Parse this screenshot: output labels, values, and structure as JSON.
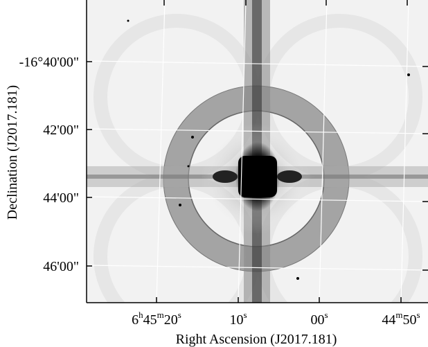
{
  "figure": {
    "x_label": "Right Ascension (J2017.181)",
    "y_label": "Declination (J2017.181)",
    "x_ticks": [
      [
        "6",
        "h",
        "45",
        "m",
        "20",
        "s"
      ],
      [
        "10",
        "s"
      ],
      [
        "00",
        "s"
      ],
      [
        "44",
        "m",
        "50",
        "s"
      ]
    ],
    "y_ticks": [
      "-16°40'00\"",
      "42'00\"",
      "44'00\"",
      "46'00\""
    ]
  }
}
